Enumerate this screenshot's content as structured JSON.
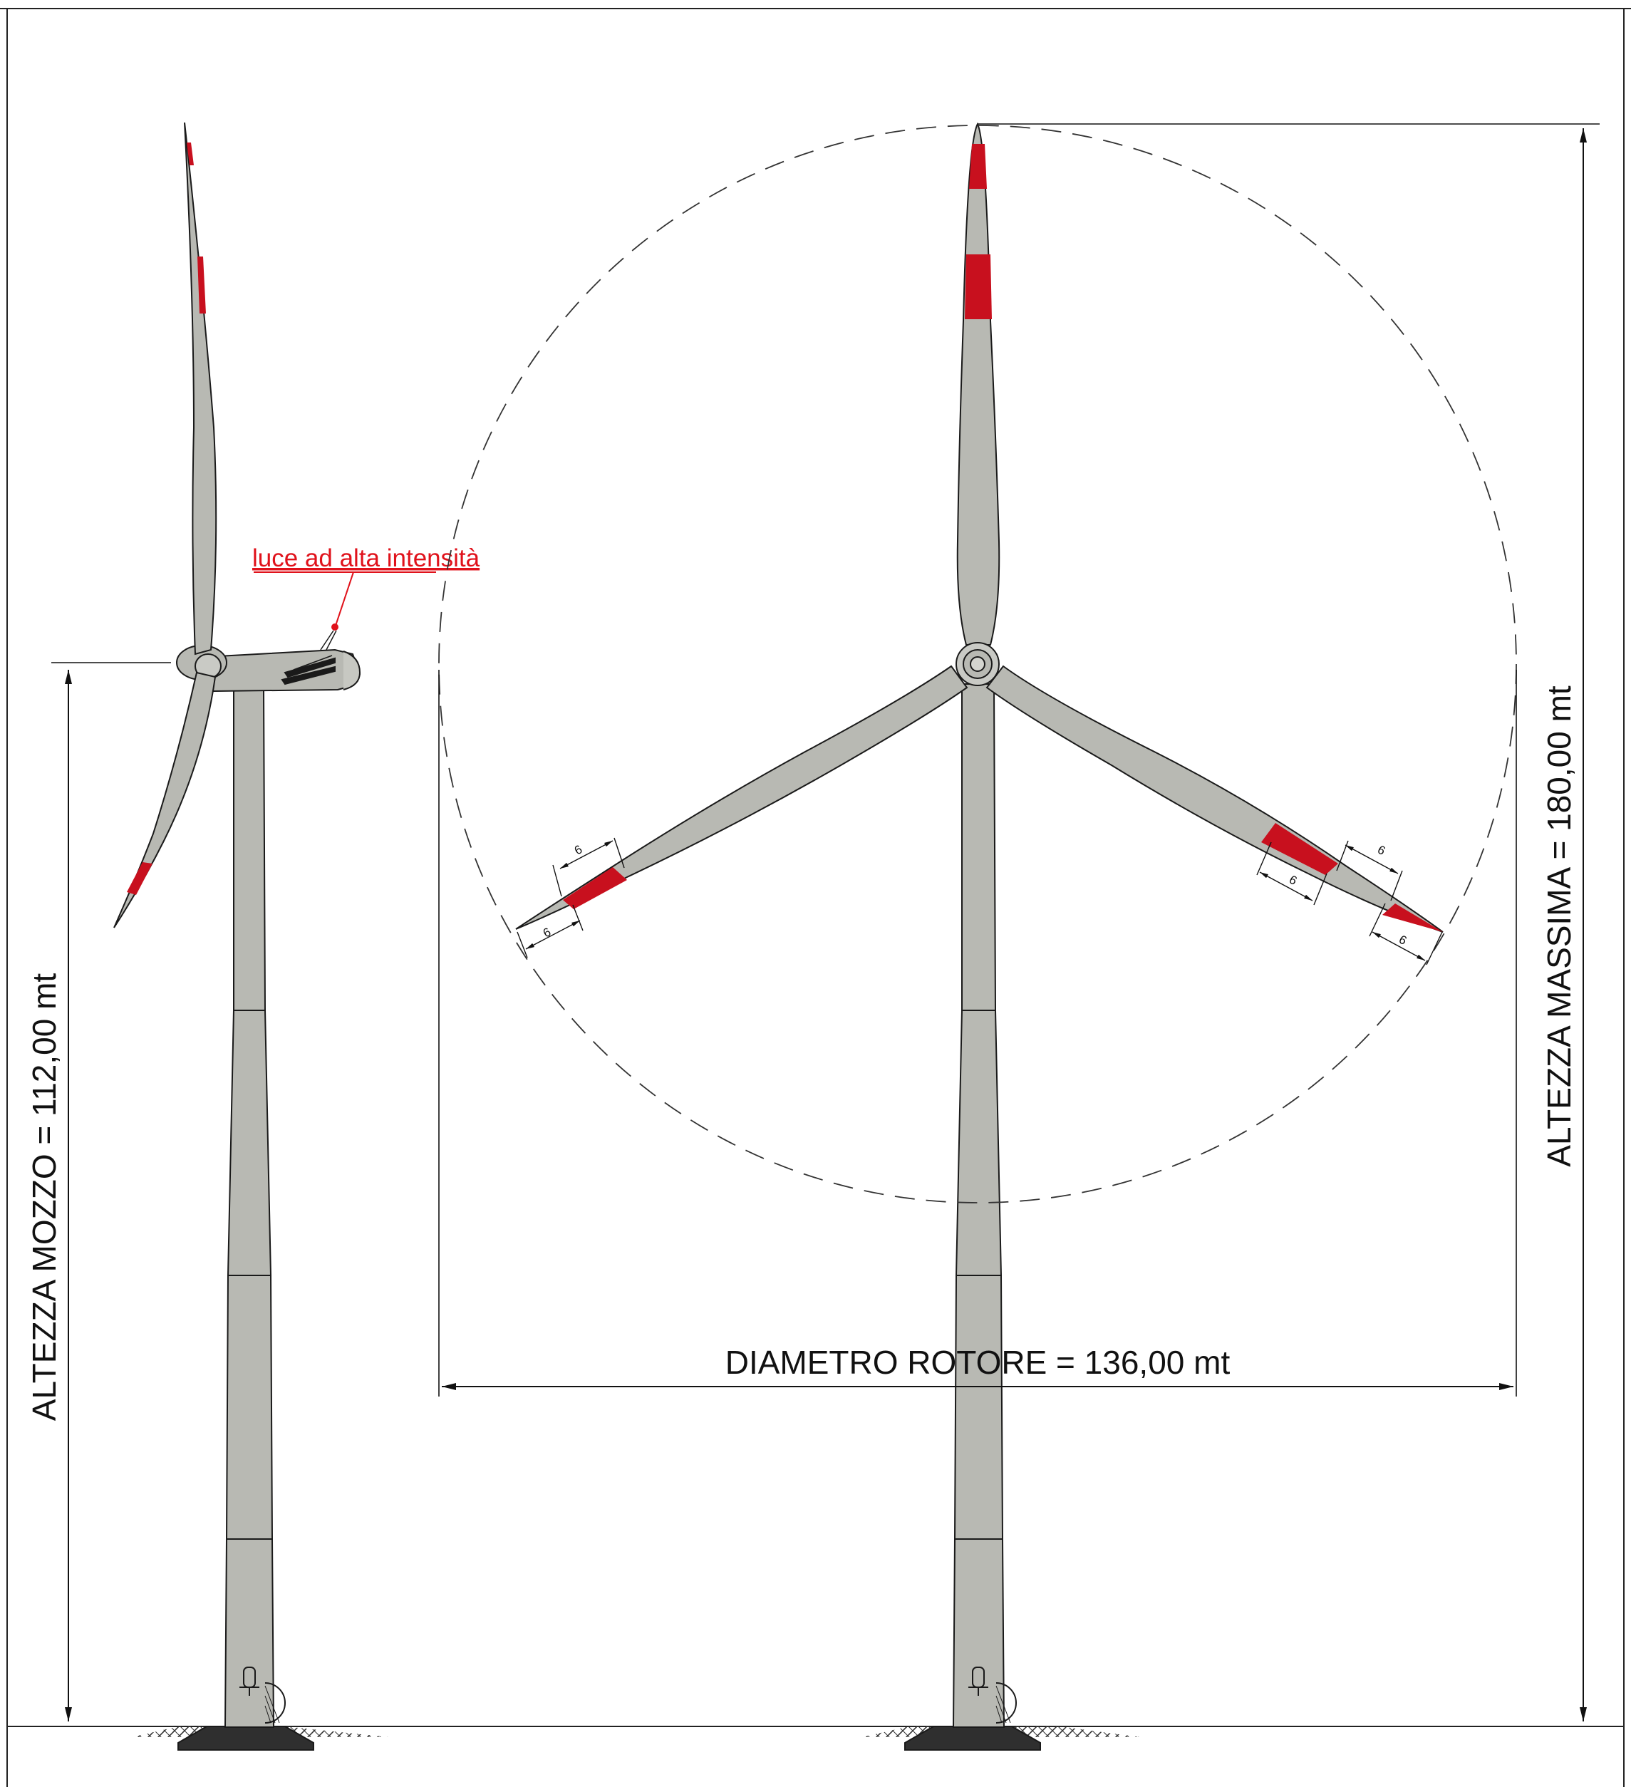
{
  "labels": {
    "hub_height": "ALTEZZA MOZZO = 112,00 mt",
    "max_height": "ALTEZZA MASSIMA = 180,00 mt",
    "rotor_diameter": "DIAMETRO ROTORE = 136,00 mt",
    "light_callout": "luce ad alta intensità",
    "marking_width": "6"
  },
  "colors": {
    "body_fill": "#b8b9b3",
    "marking_red": "#c8101e",
    "outline": "#1a1a1a",
    "callout_red": "#e0121b",
    "foundation": "#2f2f2f"
  },
  "icons": {
    "hub": "rotor-hub-icon",
    "door": "tower-door-icon"
  }
}
